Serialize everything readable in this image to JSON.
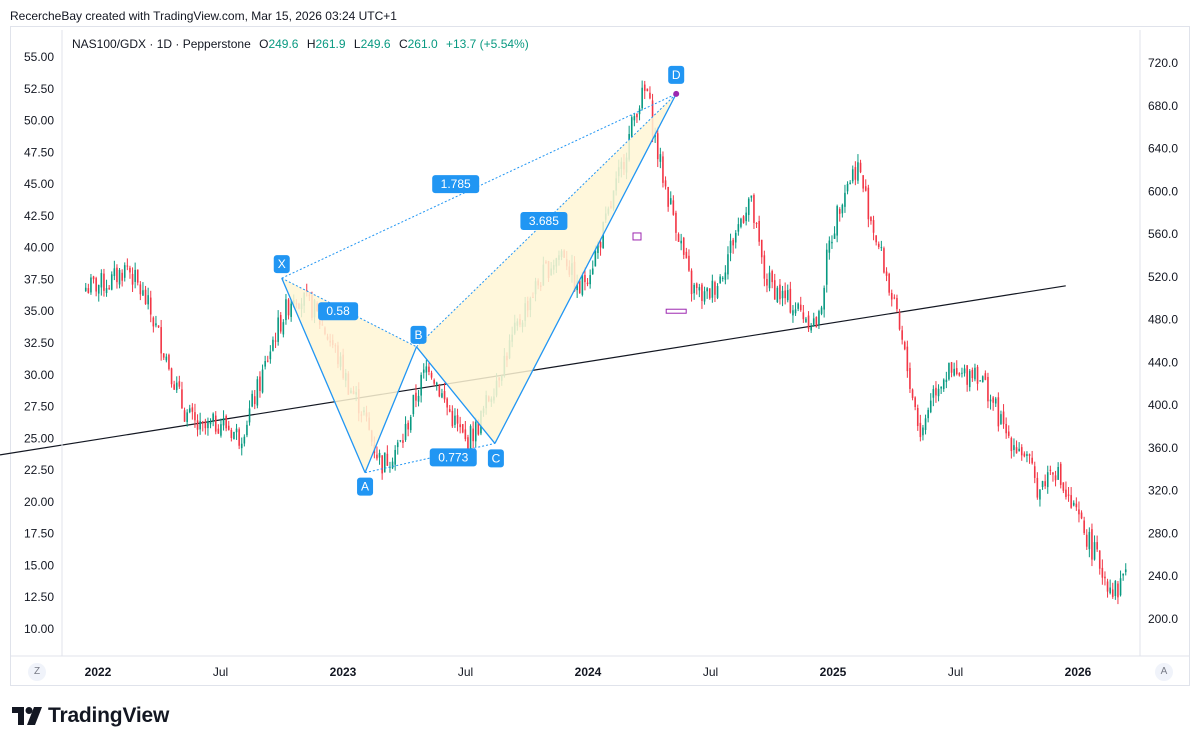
{
  "header": {
    "credit": "RecercheBay created with TradingView.com, Mar 15, 2026 03:24 UTC+1"
  },
  "legend": {
    "symbol": "NAS100/GDX · 1D · Pepperstone",
    "open_label": "O",
    "open": "249.6",
    "high_label": "H",
    "high": "261.9",
    "low_label": "L",
    "low": "249.6",
    "close_label": "C",
    "close": "261.0",
    "change": "+13.7 (+5.54%)"
  },
  "corner": {
    "left": "Z",
    "right": "A"
  },
  "brand": {
    "name": "TradingView"
  },
  "colors": {
    "up": "#089981",
    "down": "#f23645",
    "pattern": "#2196f3",
    "fill": "#fff6d5",
    "trend": "#131722"
  },
  "chart_data": {
    "type": "candlestick",
    "title": "NAS100/GDX · 1D · Pepperstone",
    "left_axis": {
      "ticks": [
        "55.00",
        "52.50",
        "50.00",
        "47.50",
        "45.00",
        "42.50",
        "40.00",
        "37.50",
        "35.00",
        "32.50",
        "30.00",
        "27.50",
        "25.00",
        "22.50",
        "20.00",
        "17.50",
        "15.00",
        "12.50",
        "10.00"
      ],
      "range": [
        7.5,
        57.5
      ]
    },
    "right_axis": {
      "ticks": [
        "720.0",
        "680.0",
        "640.0",
        "600.0",
        "560.0",
        "520.0",
        "480.0",
        "440.0",
        "400.0",
        "360.0",
        "320.0",
        "280.0",
        "240.0",
        "200.0"
      ],
      "range": [
        180,
        740
      ]
    },
    "x_ticks": [
      {
        "label": "2022",
        "bold": true
      },
      {
        "label": "Jul",
        "bold": false
      },
      {
        "label": "2023",
        "bold": true
      },
      {
        "label": "Jul",
        "bold": false
      },
      {
        "label": "2024",
        "bold": true
      },
      {
        "label": "Jul",
        "bold": false
      },
      {
        "label": "2025",
        "bold": true
      },
      {
        "label": "Jul",
        "bold": false
      },
      {
        "label": "2026",
        "bold": true
      }
    ],
    "series_path": [
      [
        2021.95,
        510
      ],
      [
        2022.05,
        515
      ],
      [
        2022.12,
        530
      ],
      [
        2022.2,
        495
      ],
      [
        2022.28,
        445
      ],
      [
        2022.35,
        395
      ],
      [
        2022.42,
        375
      ],
      [
        2022.5,
        385
      ],
      [
        2022.58,
        370
      ],
      [
        2022.66,
        420
      ],
      [
        2022.72,
        465
      ],
      [
        2022.8,
        505
      ],
      [
        2022.88,
        490
      ],
      [
        2022.96,
        455
      ],
      [
        2023.02,
        420
      ],
      [
        2023.08,
        395
      ],
      [
        2023.12,
        365
      ],
      [
        2023.16,
        345
      ],
      [
        2023.24,
        365
      ],
      [
        2023.3,
        410
      ],
      [
        2023.35,
        440
      ],
      [
        2023.42,
        400
      ],
      [
        2023.5,
        365
      ],
      [
        2023.55,
        380
      ],
      [
        2023.6,
        410
      ],
      [
        2023.68,
        455
      ],
      [
        2023.76,
        500
      ],
      [
        2023.84,
        530
      ],
      [
        2023.9,
        545
      ],
      [
        2023.96,
        505
      ],
      [
        2024.02,
        535
      ],
      [
        2024.08,
        575
      ],
      [
        2024.14,
        625
      ],
      [
        2024.2,
        680
      ],
      [
        2024.24,
        695
      ],
      [
        2024.28,
        640
      ],
      [
        2024.32,
        600
      ],
      [
        2024.36,
        570
      ],
      [
        2024.42,
        510
      ],
      [
        2024.48,
        500
      ],
      [
        2024.54,
        520
      ],
      [
        2024.6,
        560
      ],
      [
        2024.66,
        595
      ],
      [
        2024.72,
        520
      ],
      [
        2024.8,
        500
      ],
      [
        2024.88,
        485
      ],
      [
        2024.94,
        475
      ],
      [
        2024.98,
        545
      ],
      [
        2025.04,
        600
      ],
      [
        2025.1,
        625
      ],
      [
        2025.16,
        570
      ],
      [
        2025.22,
        520
      ],
      [
        2025.28,
        460
      ],
      [
        2025.32,
        415
      ],
      [
        2025.36,
        370
      ],
      [
        2025.4,
        410
      ],
      [
        2025.46,
        430
      ],
      [
        2025.52,
        425
      ],
      [
        2025.58,
        435
      ],
      [
        2025.64,
        410
      ],
      [
        2025.7,
        375
      ],
      [
        2025.78,
        355
      ],
      [
        2025.84,
        320
      ],
      [
        2025.9,
        345
      ],
      [
        2025.96,
        310
      ],
      [
        2026.02,
        285
      ],
      [
        2026.08,
        255
      ],
      [
        2026.12,
        235
      ],
      [
        2026.16,
        225
      ],
      [
        2026.2,
        255
      ]
    ],
    "harmonic_pattern": {
      "points": [
        {
          "label": "X",
          "time": 2022.75,
          "price": 37.6
        },
        {
          "label": "A",
          "time": 2023.09,
          "price": 22.3
        },
        {
          "label": "B",
          "time": 2023.3,
          "price": 32.2
        },
        {
          "label": "C",
          "time": 2023.62,
          "price": 24.6
        },
        {
          "label": "D",
          "time": 2024.36,
          "price": 52.1
        }
      ],
      "ratios": [
        {
          "label": "0.58",
          "time": 2022.98,
          "price": 35.0
        },
        {
          "label": "0.773",
          "time": 2023.45,
          "price": 23.5
        },
        {
          "label": "3.685",
          "time": 2023.82,
          "price": 42.1
        },
        {
          "label": "1.785",
          "time": 2023.46,
          "price": 45.0
        }
      ]
    },
    "trendline": {
      "start": {
        "time": 2021.6,
        "price": 23.7
      },
      "end": {
        "time": 2025.95,
        "price": 37.0
      }
    },
    "markers": [
      {
        "type": "box",
        "time": 2024.2,
        "price": 41.0
      },
      {
        "type": "box",
        "time": 2024.36,
        "price": 35.0
      }
    ]
  }
}
